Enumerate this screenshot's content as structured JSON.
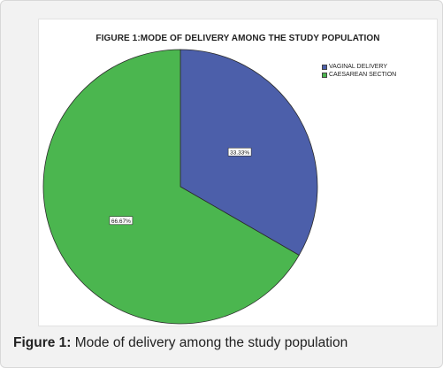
{
  "chart_data": {
    "type": "pie",
    "title": "FIGURE 1:MODE OF DELIVERY AMONG THE STUDY POPULATION",
    "slices": [
      {
        "label": "VAGINAL DELIVERY",
        "value": 33.33,
        "display": "33.33%",
        "color": "#4c5faa"
      },
      {
        "label": "CAESAREAN SECTION",
        "value": 66.67,
        "display": "66.67%",
        "color": "#4bb64f"
      }
    ],
    "legend_position": "top-right"
  },
  "caption": {
    "label": "Figure 1:",
    "text": "Mode of delivery among the study population"
  }
}
